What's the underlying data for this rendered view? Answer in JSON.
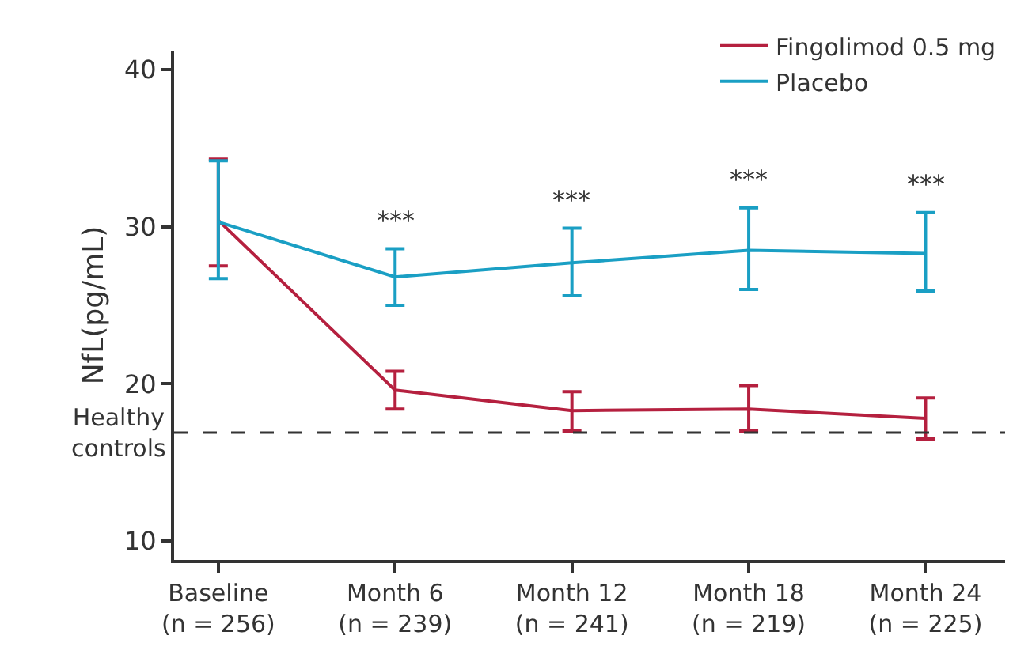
{
  "chart_data": {
    "type": "line",
    "categories": [
      "Baseline\n(n = 256)",
      "Month 6\n(n = 239)",
      "Month 12\n(n = 241)",
      "Month 18\n(n = 219)",
      "Month 24\n(n = 225)"
    ],
    "series": [
      {
        "name": "Fingolimod 0.5 mg",
        "color": "#b5203f",
        "values": [
          30.4,
          19.6,
          18.3,
          18.4,
          17.8
        ],
        "errors": [
          [
            27.5,
            34.3
          ],
          [
            18.4,
            20.8
          ],
          [
            17.0,
            19.5
          ],
          [
            17.0,
            19.9
          ],
          [
            16.5,
            19.1
          ]
        ]
      },
      {
        "name": "Placebo",
        "color": "#1a9fc4",
        "values": [
          30.3,
          26.8,
          27.7,
          28.5,
          28.3
        ],
        "errors": [
          [
            26.7,
            34.2
          ],
          [
            25.0,
            28.6
          ],
          [
            25.6,
            29.9
          ],
          [
            26.0,
            31.2
          ],
          [
            25.9,
            30.9
          ]
        ]
      }
    ],
    "ylabel": "NfL(pg/mL)",
    "ylim": [
      8.8,
      41.2
    ],
    "yticks": [
      10,
      20,
      30,
      40
    ],
    "ref_lines": [
      {
        "axis": "y",
        "value": 16.9,
        "label": "Healthy\ncontrols",
        "color": "#333333",
        "line_style": "dashed"
      }
    ],
    "annotations": [
      "***",
      "***",
      "***",
      "***"
    ],
    "legend": "top right",
    "marker": "none",
    "line_style": "solid"
  }
}
